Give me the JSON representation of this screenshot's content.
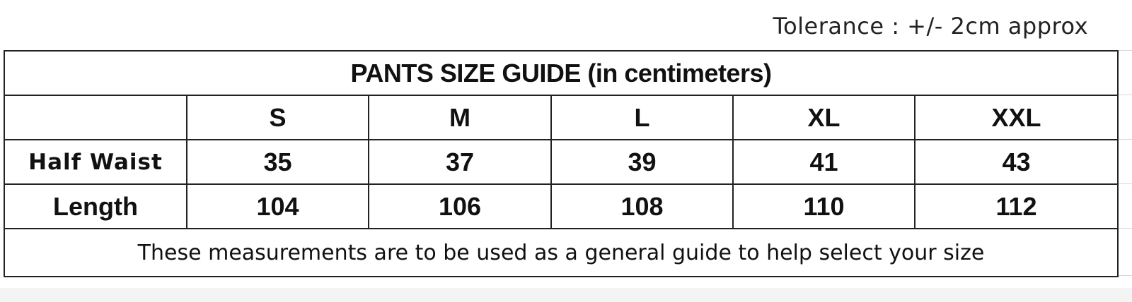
{
  "tolerance": "Tolerance : +/- 2cm approx",
  "title": "PANTS SIZE GUIDE (in centimeters)",
  "sizes": [
    "S",
    "M",
    "L",
    "XL",
    "XXL"
  ],
  "rows": [
    {
      "label": "Half Waist",
      "values": [
        "35",
        "37",
        "39",
        "41",
        "43"
      ]
    },
    {
      "label": "Length",
      "values": [
        "104",
        "106",
        "108",
        "110",
        "112"
      ]
    }
  ],
  "footer": "These measurements are to be used as a general guide to help select your size"
}
